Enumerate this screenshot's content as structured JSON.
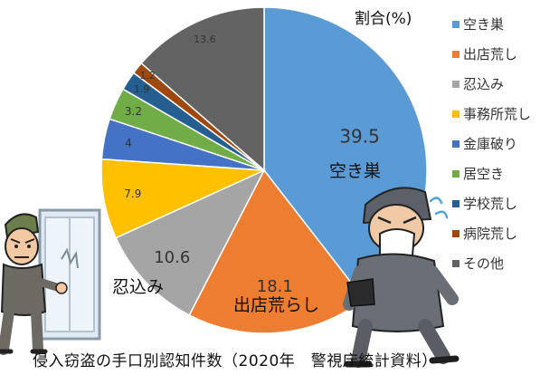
{
  "chart_data": {
    "type": "pie",
    "title": "侵入窃盗の手口別認知件数（2020年　警視庁統計資料）",
    "unit_label": "割合(%)",
    "legend_position": "right",
    "slices": [
      {
        "label": "空き巣",
        "value": 39.5,
        "value_text": "39.5",
        "color": "#5b9bd5"
      },
      {
        "label": "出店荒し",
        "value": 18.1,
        "value_text": "18.1",
        "color": "#ed7d31"
      },
      {
        "label": "忍込み",
        "value": 10.6,
        "value_text": "10.6",
        "color": "#a5a5a5"
      },
      {
        "label": "事務所荒し",
        "value": 7.9,
        "value_text": "7.9",
        "color": "#ffc000"
      },
      {
        "label": "金庫破り",
        "value": 4,
        "value_text": "4",
        "color": "#4472c4"
      },
      {
        "label": "居空き",
        "value": 3.2,
        "value_text": "3.2",
        "color": "#70ad47"
      },
      {
        "label": "学校荒し",
        "value": 1.9,
        "value_text": "1.9",
        "color": "#255e91"
      },
      {
        "label": "病院荒し",
        "value": 1.2,
        "value_text": "1.2",
        "color": "#9e480e"
      },
      {
        "label": "その他",
        "value": 13.6,
        "value_text": "13.6",
        "color": "#636363"
      }
    ],
    "annotations": [
      "空き巣",
      "出店荒らし",
      "忍込み"
    ]
  },
  "illustrations": [
    "burglar-peeking-window-icon",
    "masked-burglar-running-icon"
  ]
}
